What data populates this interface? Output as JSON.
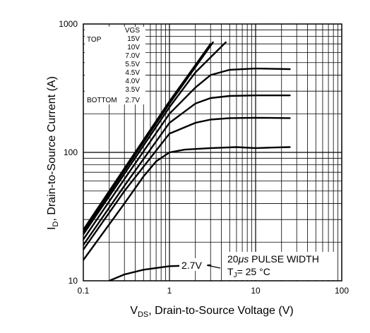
{
  "chart_data": {
    "type": "line",
    "x_scale": "log",
    "y_scale": "log",
    "xlim": [
      0.1,
      100
    ],
    "ylim": [
      10,
      1000
    ],
    "x_ticks": [
      "0.1",
      "1",
      "10",
      "100"
    ],
    "y_ticks": [
      "10",
      "100",
      "1000"
    ],
    "xlabel_main": "V",
    "xlabel_sub": "DS",
    "xlabel_rest": ", Drain-to-Source Voltage (V)",
    "ylabel_main": "I",
    "ylabel_sub": "D",
    "ylabel_rest": ",  Drain-to-Source Current (A)",
    "grid": true,
    "legend": {
      "placement": "top-left",
      "header": "VGS",
      "top_label": "TOP",
      "bottom_label": "BOTTOM",
      "entries": [
        "15V",
        "10V",
        "7.0V",
        "5.5V",
        "4.5V",
        "4.0V",
        "3.5V",
        "2.7V"
      ]
    },
    "annotations": {
      "pulse_value": "20",
      "pulse_unit": "μs",
      "pulse_text": " PULSE WIDTH",
      "tj_main": "T",
      "tj_sub": "J",
      "tj_rest": "= 25 °C",
      "curve_label": "2.7V"
    },
    "series": [
      {
        "vgs": "15V",
        "points": [
          [
            0.1,
            25
          ],
          [
            0.3,
            75
          ],
          [
            1,
            250
          ],
          [
            3,
            700
          ]
        ]
      },
      {
        "vgs": "10V",
        "points": [
          [
            0.1,
            24
          ],
          [
            0.3,
            72
          ],
          [
            1,
            240
          ],
          [
            3.2,
            720
          ]
        ]
      },
      {
        "vgs": "7.0V",
        "points": [
          [
            0.1,
            23
          ],
          [
            0.3,
            68
          ],
          [
            1,
            225
          ],
          [
            2,
            420
          ],
          [
            4.5,
            720
          ]
        ]
      },
      {
        "vgs": "5.5V",
        "points": [
          [
            0.1,
            21
          ],
          [
            0.3,
            62
          ],
          [
            1,
            200
          ],
          [
            2,
            320
          ],
          [
            3,
            400
          ],
          [
            5,
            440
          ],
          [
            10,
            450
          ],
          [
            25,
            445
          ]
        ]
      },
      {
        "vgs": "4.5V",
        "points": [
          [
            0.1,
            19
          ],
          [
            0.3,
            55
          ],
          [
            1,
            170
          ],
          [
            2,
            240
          ],
          [
            3,
            265
          ],
          [
            5,
            275
          ],
          [
            10,
            278
          ],
          [
            25,
            278
          ]
        ]
      },
      {
        "vgs": "4.0V",
        "points": [
          [
            0.1,
            17.5
          ],
          [
            0.3,
            50
          ],
          [
            1,
            140
          ],
          [
            2,
            170
          ],
          [
            3,
            180
          ],
          [
            5,
            185
          ],
          [
            10,
            186
          ],
          [
            25,
            185
          ]
        ]
      },
      {
        "vgs": "3.5V",
        "points": [
          [
            0.1,
            14.5
          ],
          [
            0.3,
            40
          ],
          [
            0.5,
            65
          ],
          [
            0.7,
            85
          ],
          [
            1,
            100
          ],
          [
            1.5,
            105
          ],
          [
            3,
            108
          ],
          [
            6,
            110
          ],
          [
            10,
            108
          ],
          [
            15,
            109
          ],
          [
            25,
            110
          ]
        ]
      },
      {
        "vgs": "2.7V",
        "points": [
          [
            0.2,
            10
          ],
          [
            0.3,
            11.2
          ],
          [
            0.5,
            12.2
          ],
          [
            1,
            13
          ],
          [
            2,
            13.2
          ],
          [
            3,
            13.2
          ]
        ]
      }
    ]
  }
}
